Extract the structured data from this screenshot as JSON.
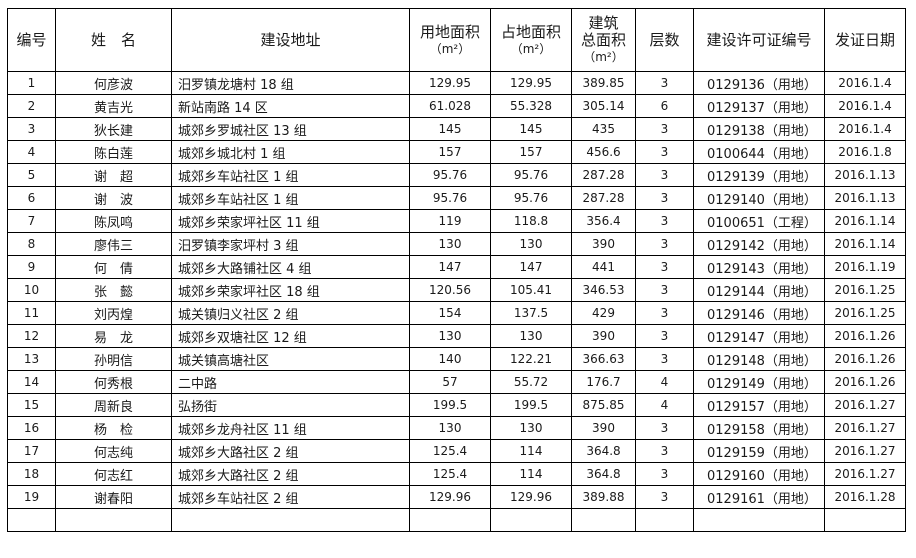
{
  "headers": [
    {
      "label": "编号"
    },
    {
      "label": "姓　名"
    },
    {
      "label": "建设地址"
    },
    {
      "label": "用地面积",
      "unit": "（m²）"
    },
    {
      "label": "占地面积",
      "unit": "（m²）"
    },
    {
      "label": "建筑\n总面积",
      "unit": "（m²）"
    },
    {
      "label": "层数"
    },
    {
      "label": "建设许可证编号"
    },
    {
      "label": "发证日期"
    }
  ],
  "rows": [
    [
      "1",
      "何彦波",
      "汨罗镇龙塘村 18 组",
      "129.95",
      "129.95",
      "389.85",
      "3",
      "0129136（用地）",
      "2016.1.4"
    ],
    [
      "2",
      "黄吉光",
      "新站南路 14 区",
      "61.028",
      "55.328",
      "305.14",
      "6",
      "0129137（用地）",
      "2016.1.4"
    ],
    [
      "3",
      "狄长建",
      "城郊乡罗城社区 13 组",
      "145",
      "145",
      "435",
      "3",
      "0129138（用地）",
      "2016.1.4"
    ],
    [
      "4",
      "陈白莲",
      "城郊乡城北村 1 组",
      "157",
      "157",
      "456.6",
      "3",
      "0100644（用地）",
      "2016.1.8"
    ],
    [
      "5",
      "谢　超",
      "城郊乡车站社区 1 组",
      "95.76",
      "95.76",
      "287.28",
      "3",
      "0129139（用地）",
      "2016.1.13"
    ],
    [
      "6",
      "谢　波",
      "城郊乡车站社区 1 组",
      "95.76",
      "95.76",
      "287.28",
      "3",
      "0129140（用地）",
      "2016.1.13"
    ],
    [
      "7",
      "陈凤鸣",
      "城郊乡荣家坪社区 11 组",
      "119",
      "118.8",
      "356.4",
      "3",
      "0100651（工程）",
      "2016.1.14"
    ],
    [
      "8",
      "廖伟三",
      "汨罗镇李家坪村 3 组",
      "130",
      "130",
      "390",
      "3",
      "0129142（用地）",
      "2016.1.14"
    ],
    [
      "9",
      "何　倩",
      "城郊乡大路铺社区 4 组",
      "147",
      "147",
      "441",
      "3",
      "0129143（用地）",
      "2016.1.19"
    ],
    [
      "10",
      "张　懿",
      "城郊乡荣家坪社区 18 组",
      "120.56",
      "105.41",
      "346.53",
      "3",
      "0129144（用地）",
      "2016.1.25"
    ],
    [
      "11",
      "刘丙煌",
      "城关镇归义社区 2 组",
      "154",
      "137.5",
      "429",
      "3",
      "0129146（用地）",
      "2016.1.25"
    ],
    [
      "12",
      "易　龙",
      "城郊乡双塘社区 12 组",
      "130",
      "130",
      "390",
      "3",
      "0129147（用地）",
      "2016.1.26"
    ],
    [
      "13",
      "孙明信",
      "城关镇高塘社区",
      "140",
      "122.21",
      "366.63",
      "3",
      "0129148（用地）",
      "2016.1.26"
    ],
    [
      "14",
      "何秀根",
      "二中路",
      "57",
      "55.72",
      "176.7",
      "4",
      "0129149（用地）",
      "2016.1.26"
    ],
    [
      "15",
      "周新良",
      "弘扬街",
      "199.5",
      "199.5",
      "875.85",
      "4",
      "0129157（用地）",
      "2016.1.27"
    ],
    [
      "16",
      "杨　检",
      "城郊乡龙舟社区 11 组",
      "130",
      "130",
      "390",
      "3",
      "0129158（用地）",
      "2016.1.27"
    ],
    [
      "17",
      "何志纯",
      "城郊乡大路社区 2 组",
      "125.4",
      "114",
      "364.8",
      "3",
      "0129159（用地）",
      "2016.1.27"
    ],
    [
      "18",
      "何志红",
      "城郊乡大路社区 2 组",
      "125.4",
      "114",
      "364.8",
      "3",
      "0129160（用地）",
      "2016.1.27"
    ],
    [
      "19",
      "谢春阳",
      "城郊乡车站社区 2 组",
      "129.96",
      "129.96",
      "389.88",
      "3",
      "0129161（用地）",
      "2016.1.28"
    ],
    [
      "",
      "",
      "",
      "",
      "",
      "",
      "",
      "",
      ""
    ]
  ]
}
